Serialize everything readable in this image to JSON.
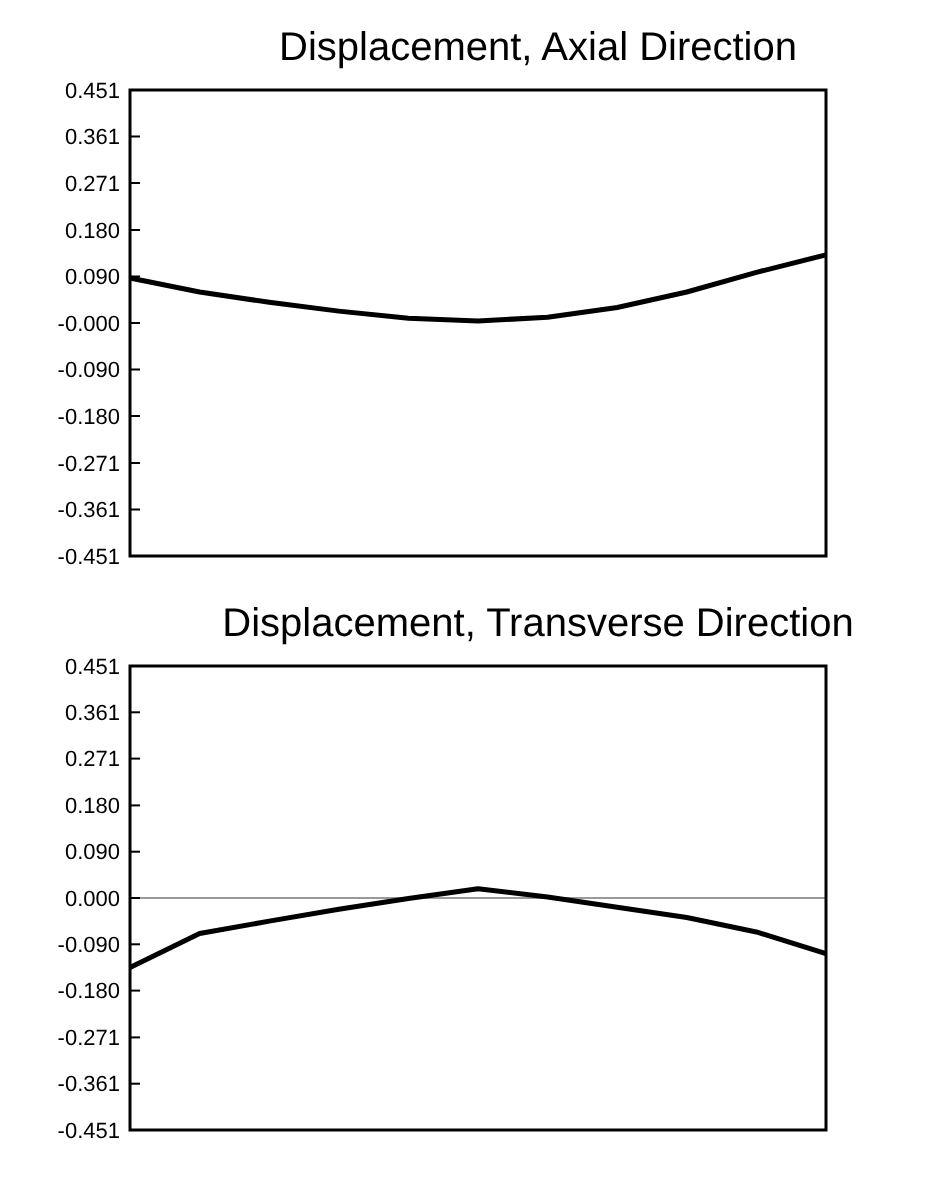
{
  "chart_data": [
    {
      "type": "line",
      "title": "Displacement, Axial Direction",
      "categories": [
        null,
        null,
        null,
        null,
        null,
        null,
        null,
        null,
        null,
        null,
        null
      ],
      "series": [
        {
          "color": "#000000",
          "values": [
            0.087,
            0.06,
            0.04,
            0.023,
            0.009,
            0.004,
            0.011,
            0.03,
            0.06,
            0.098,
            0.132
          ]
        }
      ],
      "ylim": [
        -0.451,
        0.451
      ],
      "yticks": [
        {
          "value": 0.451,
          "label": "0.451"
        },
        {
          "value": 0.361,
          "label": "0.361"
        },
        {
          "value": 0.271,
          "label": "0.271"
        },
        {
          "value": 0.18,
          "label": "0.180"
        },
        {
          "value": 0.09,
          "label": "0.090"
        },
        {
          "value": 0,
          "label": "-0.000"
        },
        {
          "value": -0.09,
          "label": "-0.090"
        },
        {
          "value": -0.18,
          "label": "-0.180"
        },
        {
          "value": -0.271,
          "label": "-0.271"
        },
        {
          "value": -0.361,
          "label": "-0.361"
        },
        {
          "value": -0.451,
          "label": "-0.451"
        }
      ],
      "grid": false,
      "marker": "none",
      "line_style": "solid"
    },
    {
      "type": "line",
      "title": "Displacement, Transverse Direction",
      "categories": [
        null,
        null,
        null,
        null,
        null,
        null,
        null,
        null,
        null,
        null,
        null
      ],
      "series": [
        {
          "color": "#000000",
          "values": [
            -0.135,
            -0.069,
            -0.045,
            -0.022,
            -0.001,
            0.018,
            0.002,
            -0.018,
            -0.038,
            -0.066,
            -0.108
          ]
        }
      ],
      "ylim": [
        -0.451,
        0.451
      ],
      "yticks": [
        {
          "value": 0.451,
          "label": "0.451"
        },
        {
          "value": 0.361,
          "label": "0.361"
        },
        {
          "value": 0.271,
          "label": "0.271"
        },
        {
          "value": 0.18,
          "label": "0.180"
        },
        {
          "value": 0.09,
          "label": "0.090"
        },
        {
          "value": 0,
          "label": "0.000"
        },
        {
          "value": -0.09,
          "label": "-0.090"
        },
        {
          "value": -0.18,
          "label": "-0.180"
        },
        {
          "value": -0.271,
          "label": "-0.271"
        },
        {
          "value": -0.361,
          "label": "-0.361"
        },
        {
          "value": -0.451,
          "label": "-0.451"
        }
      ],
      "ref_lines": [
        {
          "axis": "y",
          "value": 0,
          "color": "#999999"
        }
      ],
      "grid": false,
      "marker": "none",
      "line_style": "solid"
    }
  ]
}
